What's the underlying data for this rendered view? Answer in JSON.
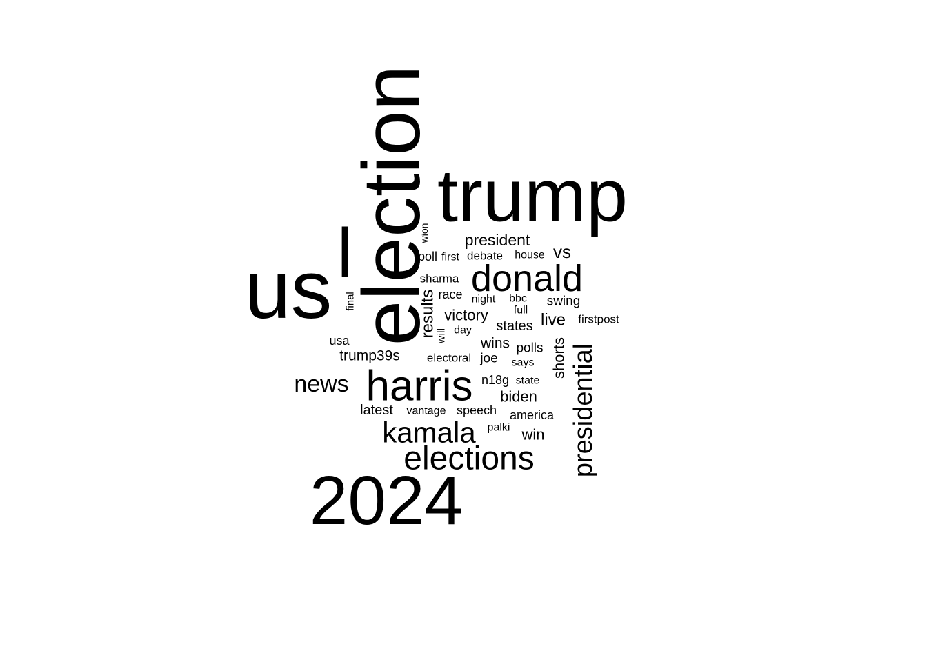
{
  "chart_data": {
    "type": "wordcloud",
    "color": "#000000",
    "words": [
      {
        "text": "election",
        "rank": 1,
        "vertical": true
      },
      {
        "text": "us",
        "rank": 2,
        "vertical": false
      },
      {
        "text": "trump",
        "rank": 3,
        "vertical": false
      },
      {
        "text": "2024",
        "rank": 4,
        "vertical": false
      },
      {
        "text": "l",
        "rank": 5,
        "vertical": false
      },
      {
        "text": "harris",
        "rank": 6,
        "vertical": false
      },
      {
        "text": "donald",
        "rank": 7,
        "vertical": false
      },
      {
        "text": "elections",
        "rank": 8,
        "vertical": false
      },
      {
        "text": "presidential",
        "rank": 9,
        "vertical": true
      },
      {
        "text": "kamala",
        "rank": 10,
        "vertical": false
      },
      {
        "text": "news",
        "rank": 11,
        "vertical": false
      },
      {
        "text": "vs",
        "rank": 12,
        "vertical": false
      },
      {
        "text": "president",
        "rank": 13,
        "vertical": false
      },
      {
        "text": "live",
        "rank": 14,
        "vertical": false
      },
      {
        "text": "victory",
        "rank": 15,
        "vertical": false
      },
      {
        "text": "results",
        "rank": 16,
        "vertical": true
      },
      {
        "text": "biden",
        "rank": 17,
        "vertical": false
      },
      {
        "text": "trump39s",
        "rank": 18,
        "vertical": false
      },
      {
        "text": "shorts",
        "rank": 19,
        "vertical": true
      },
      {
        "text": "wins",
        "rank": 20,
        "vertical": false
      },
      {
        "text": "states",
        "rank": 21,
        "vertical": false
      },
      {
        "text": "win",
        "rank": 22,
        "vertical": false
      },
      {
        "text": "swing",
        "rank": 23,
        "vertical": false
      },
      {
        "text": "latest",
        "rank": 24,
        "vertical": false
      },
      {
        "text": "speech",
        "rank": 25,
        "vertical": false
      },
      {
        "text": "america",
        "rank": 26,
        "vertical": false
      },
      {
        "text": "polls",
        "rank": 27,
        "vertical": false
      },
      {
        "text": "race",
        "rank": 28,
        "vertical": false
      },
      {
        "text": "sharma",
        "rank": 29,
        "vertical": false
      },
      {
        "text": "joe",
        "rank": 30,
        "vertical": false
      },
      {
        "text": "n18g",
        "rank": 31,
        "vertical": false
      },
      {
        "text": "debate",
        "rank": 32,
        "vertical": false
      },
      {
        "text": "electoral",
        "rank": 33,
        "vertical": false
      },
      {
        "text": "firstpost",
        "rank": 34,
        "vertical": false
      },
      {
        "text": "poll",
        "rank": 35,
        "vertical": false
      },
      {
        "text": "first",
        "rank": 36,
        "vertical": false
      },
      {
        "text": "usa",
        "rank": 37,
        "vertical": false
      },
      {
        "text": "house",
        "rank": 38,
        "vertical": false
      },
      {
        "text": "night",
        "rank": 39,
        "vertical": false
      },
      {
        "text": "bbc",
        "rank": 40,
        "vertical": false
      },
      {
        "text": "day",
        "rank": 41,
        "vertical": false
      },
      {
        "text": "says",
        "rank": 42,
        "vertical": false
      },
      {
        "text": "state",
        "rank": 43,
        "vertical": false
      },
      {
        "text": "vantage",
        "rank": 44,
        "vertical": false
      },
      {
        "text": "palki",
        "rank": 45,
        "vertical": false
      },
      {
        "text": "full",
        "rank": 46,
        "vertical": false
      },
      {
        "text": "will",
        "rank": 47,
        "vertical": true
      },
      {
        "text": "wion",
        "rank": 48,
        "vertical": true
      },
      {
        "text": "final",
        "rank": 49,
        "vertical": true
      }
    ]
  }
}
